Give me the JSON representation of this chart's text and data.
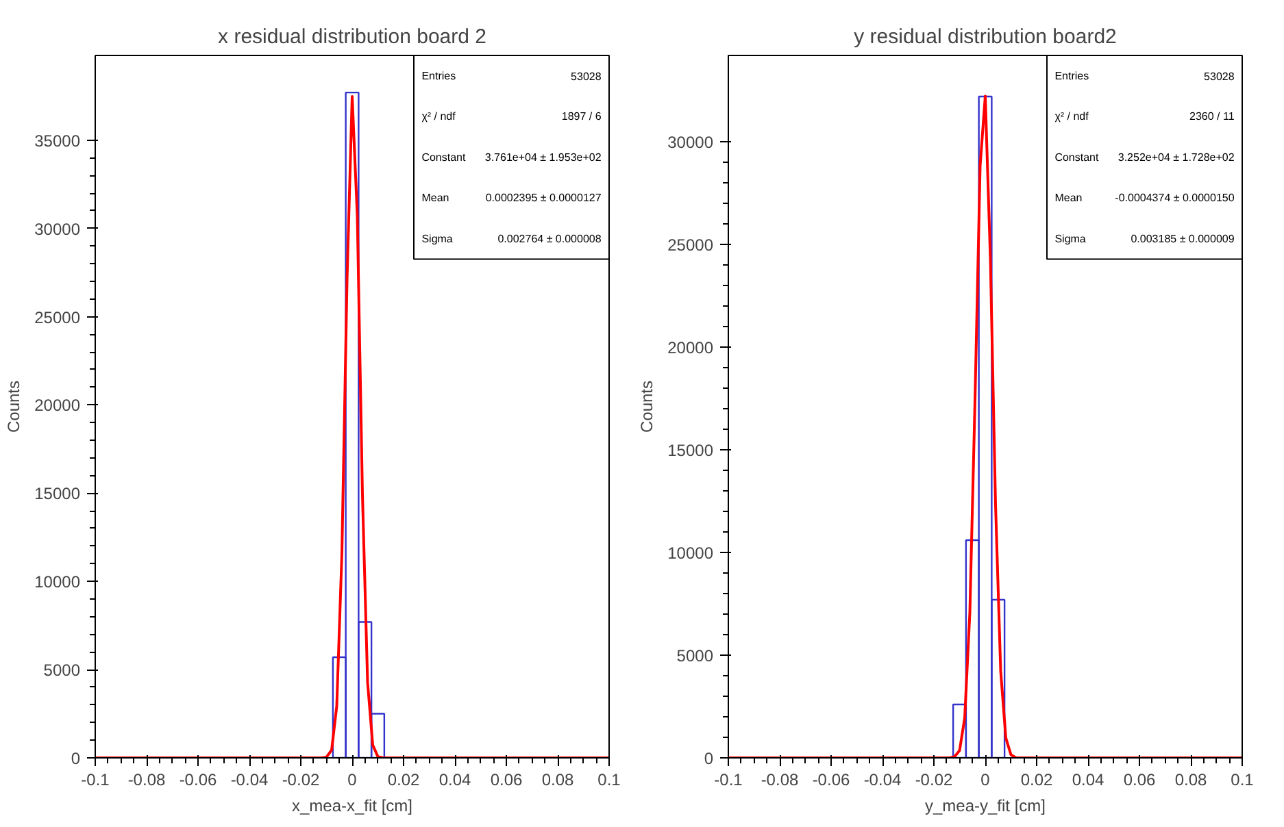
{
  "chart_data": [
    {
      "type": "histogram",
      "title": "x residual distribution board 2",
      "xlabel": "x_mea-x_fit [cm]",
      "ylabel": "Counts",
      "xlim": [
        -0.1,
        0.1
      ],
      "ylim": [
        0,
        39800
      ],
      "xticks": [
        -0.1,
        -0.08,
        -0.06,
        -0.04,
        -0.02,
        0,
        0.02,
        0.04,
        0.06,
        0.08,
        0.1
      ],
      "yticks": [
        0,
        5000,
        10000,
        15000,
        20000,
        25000,
        30000,
        35000
      ],
      "grid": false,
      "series": [
        {
          "color": "#3333cc",
          "bins": [
            -0.0075,
            -0.0025,
            0.0025,
            0.0075,
            0.0125
          ],
          "values": [
            5700,
            37700,
            7700,
            2500
          ]
        },
        {
          "type": "line",
          "color": "#ff0000",
          "x": [
            -0.1,
            -0.012,
            -0.01,
            -0.008,
            -0.006,
            -0.004,
            -0.002,
            0,
            0.002,
            0.004,
            0.006,
            0.008,
            0.01,
            0.012,
            0.1
          ],
          "values": [
            0,
            0,
            40,
            440,
            2940,
            11590,
            27090,
            37470,
            30700,
            14920,
            4280,
            730,
            70,
            0,
            0
          ]
        }
      ],
      "annotations": [
        "Entries",
        "53028",
        "χ² / ndf",
        "1897 / 6",
        "Constant",
        "3.761e+04 ± 1.953e+02",
        "Mean",
        "0.0002395 ± 0.0000127",
        "Sigma",
        "0.002764 ± 0.000008"
      ]
    },
    {
      "type": "histogram",
      "title": "y residual distribution board2",
      "xlabel": "y_mea-y_fit [cm]",
      "ylabel": "Counts",
      "xlim": [
        -0.1,
        0.1
      ],
      "ylim": [
        0,
        34200
      ],
      "xticks": [
        -0.1,
        -0.08,
        -0.06,
        -0.04,
        -0.02,
        0,
        0.02,
        0.04,
        0.06,
        0.08,
        0.1
      ],
      "yticks": [
        0,
        5000,
        10000,
        15000,
        20000,
        25000,
        30000
      ],
      "grid": false,
      "series": [
        {
          "color": "#3333cc",
          "bins": [
            -0.0125,
            -0.0075,
            -0.0025,
            0.0025,
            0.0075
          ],
          "values": [
            2600,
            10600,
            32200,
            7700
          ]
        },
        {
          "type": "line",
          "color": "#ff0000",
          "x": [
            -0.1,
            -0.014,
            -0.012,
            -0.01,
            -0.008,
            -0.006,
            -0.004,
            -0.002,
            0,
            0.002,
            0.004,
            0.006,
            0.008,
            0.01,
            0.012,
            0.1
          ],
          "values": [
            0,
            0,
            50,
            360,
            1940,
            7080,
            17390,
            28830,
            32220,
            24270,
            12330,
            4220,
            970,
            150,
            0,
            0
          ]
        }
      ],
      "annotations": [
        "Entries",
        "53028",
        "χ² / ndf",
        "2360 / 11",
        "Constant",
        "3.252e+04 ± 1.728e+02",
        "Mean",
        "-0.0004374 ± 0.0000150",
        "Sigma",
        "0.003185 ± 0.000009"
      ]
    }
  ]
}
